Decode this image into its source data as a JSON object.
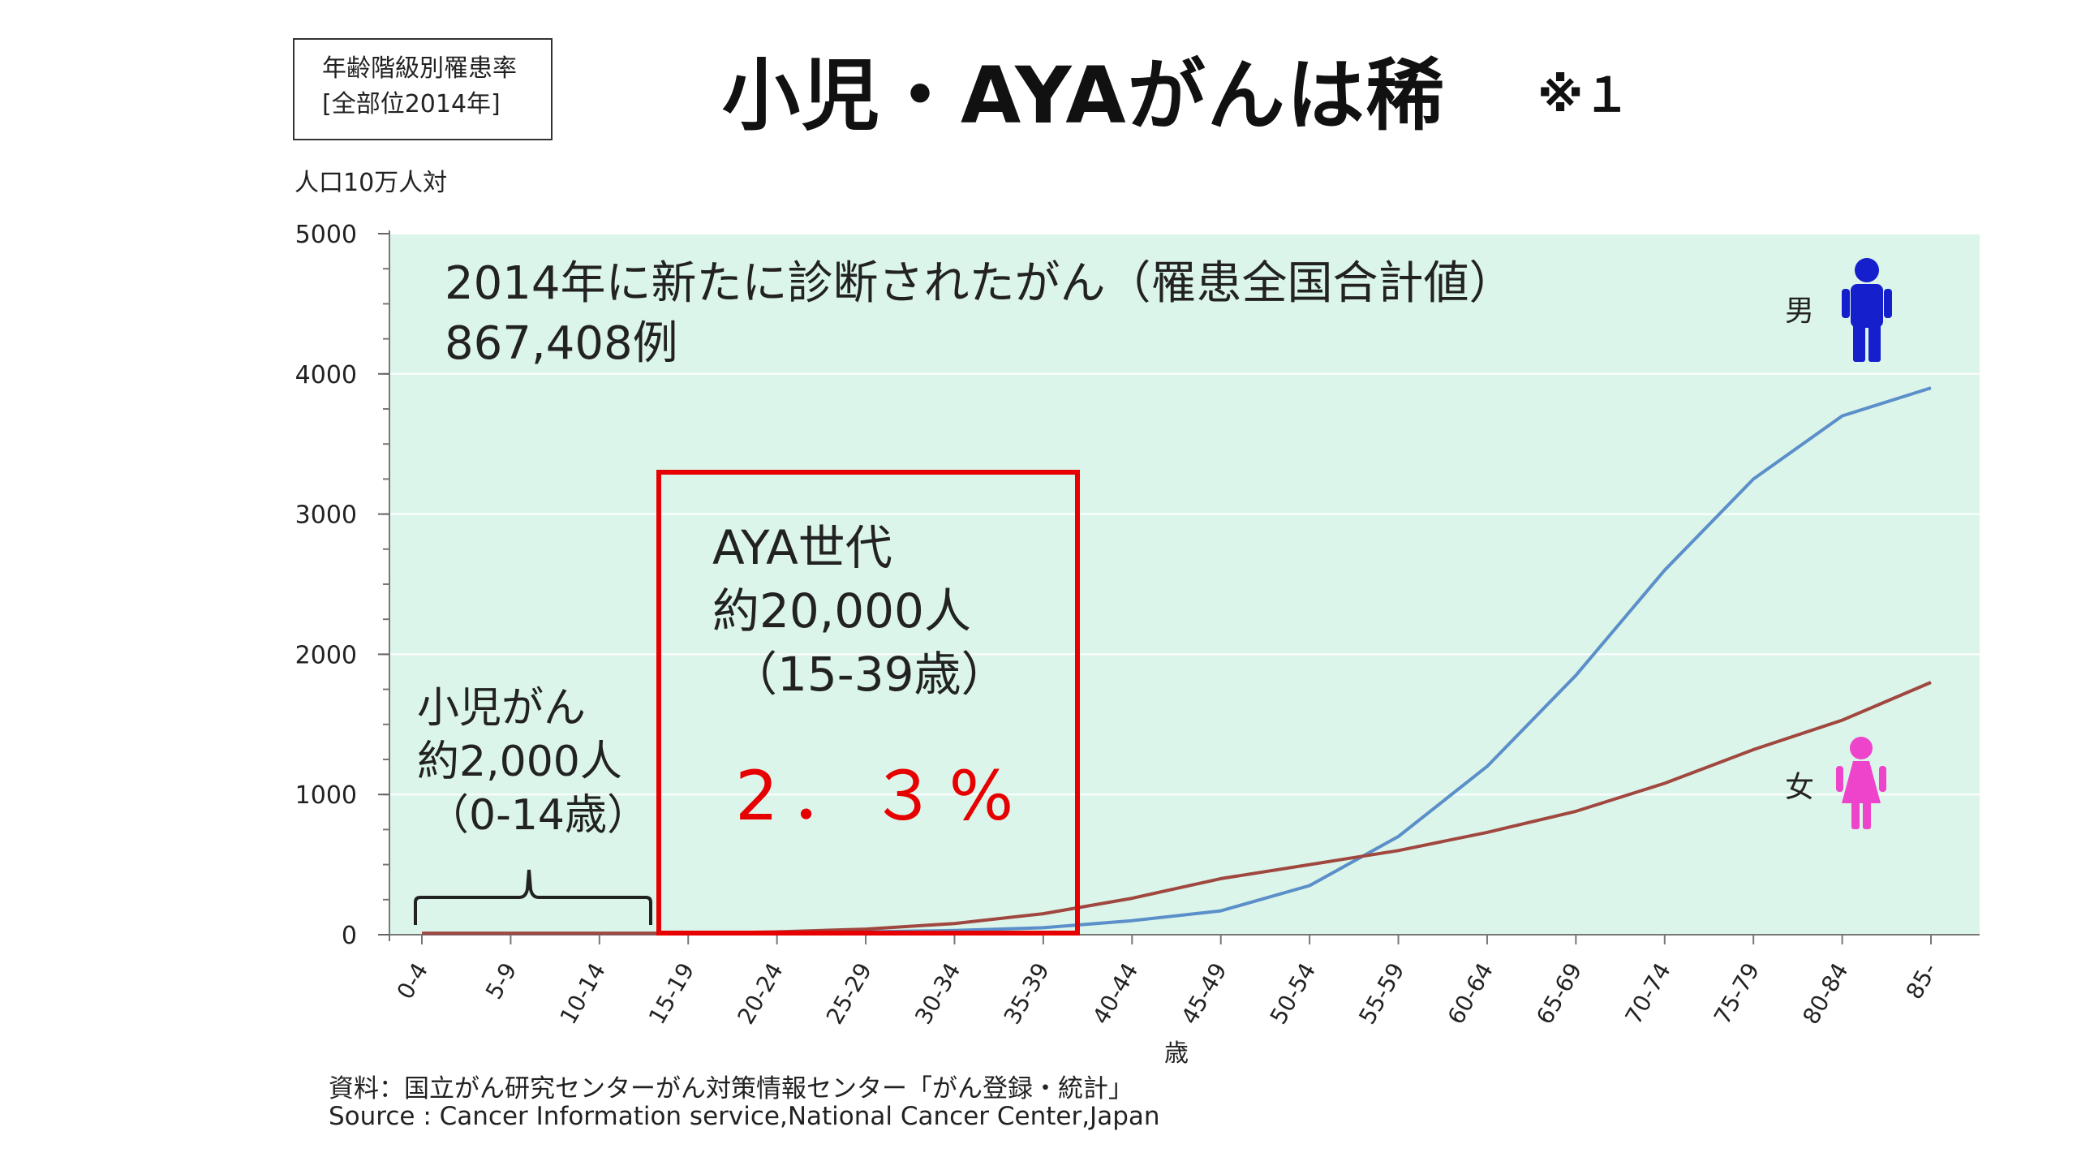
{
  "header": {
    "box_line1": "年齢階級別罹患率",
    "box_line2": "[全部位2014年]",
    "title": "小児・AYAがんは稀",
    "title_note": "※１",
    "unit": "人口10万人対"
  },
  "annotations": {
    "heading_line1": "2014年に新たに診断されたがん（罹患全国合計値）",
    "heading_line2": "867,408例",
    "aya_line1": "AYA世代",
    "aya_line2": "約20,000人",
    "aya_line3": "（15-39歳）",
    "aya_percent": "2．３%",
    "child_line1": "小児がん",
    "child_line2": "約2,000人",
    "child_line3": "（0-14歳）",
    "male_label": "男",
    "female_label": "女",
    "age_unit": "歳"
  },
  "source": {
    "line1": "資料：国立がん研究センターがん対策情報センター「がん登録・統計」",
    "line2": "Source : Cancer Information service,National Cancer Center,Japan"
  },
  "colors": {
    "plot_background": "#dcf5ea",
    "male_line": "#5b8fc9",
    "female_line": "#a0473f",
    "male_icon": "#1520cc",
    "female_icon": "#ee44cc",
    "highlight": "#e60000"
  },
  "chart_data": {
    "type": "line",
    "categories": [
      "0-4",
      "5-9",
      "10-14",
      "15-19",
      "20-24",
      "25-29",
      "30-34",
      "35-39",
      "40-44",
      "45-49",
      "50-54",
      "55-59",
      "60-64",
      "65-69",
      "70-74",
      "75-79",
      "80-84",
      "85-"
    ],
    "series": [
      {
        "name": "男",
        "values": [
          10,
          10,
          10,
          10,
          15,
          20,
          30,
          50,
          100,
          170,
          350,
          700,
          1200,
          1850,
          2600,
          3250,
          3700,
          3900
        ]
      },
      {
        "name": "女",
        "values": [
          10,
          10,
          10,
          10,
          20,
          40,
          80,
          150,
          260,
          400,
          500,
          600,
          730,
          880,
          1080,
          1320,
          1530,
          1800
        ]
      }
    ],
    "y_ticks": [
      0,
      1000,
      2000,
      3000,
      4000,
      5000
    ],
    "ylim": [
      0,
      5000
    ],
    "grid": true
  }
}
